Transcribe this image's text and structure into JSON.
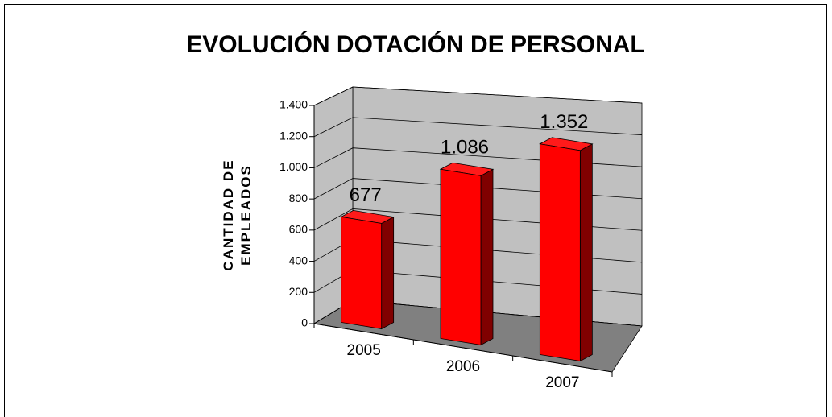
{
  "chart_data": {
    "type": "bar3d",
    "title": "EVOLUCIÓN DOTACIÓN DE PERSONAL",
    "y_label": "CANTIDAD DE EMPLEADOS",
    "categories": [
      "2005",
      "2006",
      "2007"
    ],
    "values": [
      677,
      1086,
      1352
    ],
    "value_labels": [
      "677",
      "1.086",
      "1.352"
    ],
    "color": "#ff0000",
    "ylim": [
      0,
      1400
    ],
    "yticks": [
      0,
      200,
      400,
      600,
      800,
      {
        "value": 1000,
        "label": "1.000"
      },
      {
        "value": 1200,
        "label": "1.200"
      },
      {
        "value": 1400,
        "label": "1.400"
      }
    ],
    "grid": true
  }
}
